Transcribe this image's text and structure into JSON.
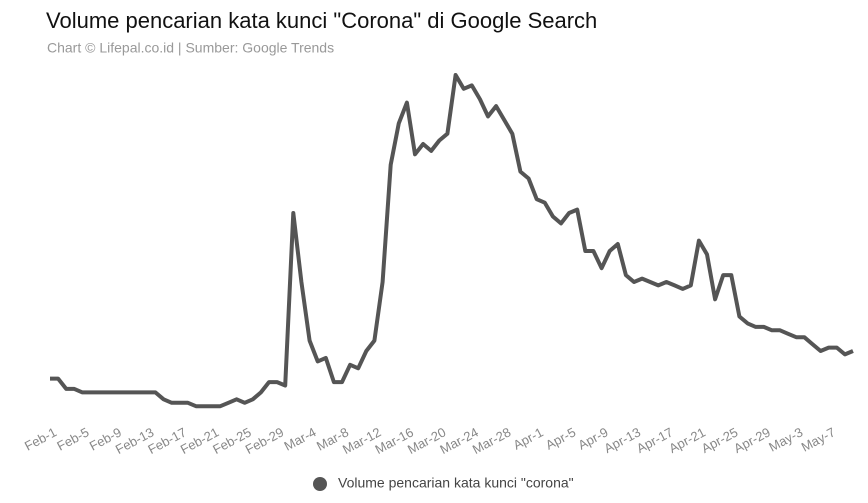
{
  "chart_data": {
    "type": "line",
    "title": "Volume pencarian kata kunci \"Corona\" di Google Search",
    "subtitle": "Chart © Lifepal.co.id | Sumber: Google Trends",
    "categories": [
      "Feb-1",
      null,
      null,
      null,
      "Feb-5",
      null,
      null,
      null,
      "Feb-9",
      null,
      null,
      null,
      "Feb-13",
      null,
      null,
      null,
      "Feb-17",
      null,
      null,
      null,
      "Feb-21",
      null,
      null,
      null,
      "Feb-25",
      null,
      null,
      null,
      "Feb-29",
      null,
      null,
      null,
      "Mar-4",
      null,
      null,
      null,
      "Mar-8",
      null,
      null,
      null,
      "Mar-12",
      null,
      null,
      null,
      "Mar-16",
      null,
      null,
      null,
      "Mar-20",
      null,
      null,
      null,
      "Mar-24",
      null,
      null,
      null,
      "Mar-28",
      null,
      null,
      null,
      "Apr-1",
      null,
      null,
      null,
      "Apr-5",
      null,
      null,
      null,
      "Apr-9",
      null,
      null,
      null,
      "Apr-13",
      null,
      null,
      null,
      "Apr-17",
      null,
      null,
      null,
      "Apr-21",
      null,
      null,
      null,
      "Apr-25",
      null,
      null,
      null,
      "Apr-29",
      null,
      null,
      null,
      "May-3",
      null,
      null,
      null,
      "May-7",
      null,
      null,
      null
    ],
    "series": [
      {
        "name": "Volume pencarian kata kunci \"corona\"",
        "color": "#555555",
        "values": [
          12,
          12,
          9,
          9,
          8,
          8,
          8,
          8,
          8,
          8,
          8,
          8,
          8,
          8,
          6,
          5,
          5,
          5,
          4,
          4,
          4,
          4,
          5,
          6,
          5,
          6,
          8,
          11,
          11,
          10,
          60,
          40,
          23,
          17,
          18,
          11,
          11,
          16,
          15,
          20,
          23,
          40,
          74,
          86,
          92,
          77,
          80,
          78,
          81,
          83,
          100,
          96,
          97,
          93,
          88,
          91,
          87,
          83,
          72,
          70,
          64,
          63,
          59,
          57,
          60,
          61,
          49,
          49,
          44,
          49,
          51,
          42,
          40,
          41,
          40,
          39,
          40,
          39,
          38,
          39,
          52,
          48,
          35,
          42,
          42,
          30,
          28,
          27,
          27,
          26,
          26,
          25,
          24,
          24,
          22,
          20,
          21,
          21,
          19,
          20
        ]
      }
    ],
    "ylim": [
      0,
      100
    ],
    "grid": false,
    "legend": "bottom"
  }
}
